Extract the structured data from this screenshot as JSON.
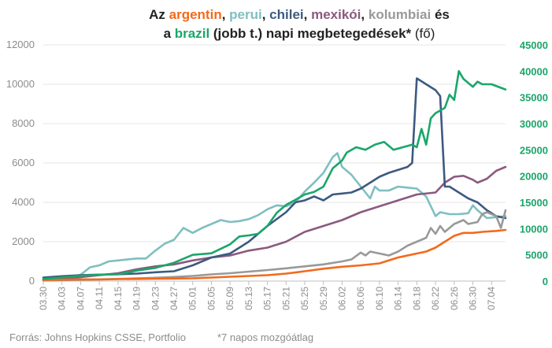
{
  "chart_data": {
    "type": "line",
    "title": {
      "line1": [
        {
          "text": "Az ",
          "color": "#222222",
          "weight": "bold"
        },
        {
          "text": "argentin",
          "color": "#f26a1b",
          "weight": "bold"
        },
        {
          "text": ", ",
          "color": "#222222",
          "weight": "bold"
        },
        {
          "text": "perui",
          "color": "#7fbfc0",
          "weight": "bold"
        },
        {
          "text": ", ",
          "color": "#222222",
          "weight": "bold"
        },
        {
          "text": "chilei",
          "color": "#3d5a80",
          "weight": "bold"
        },
        {
          "text": ", ",
          "color": "#222222",
          "weight": "bold"
        },
        {
          "text": "mexikói",
          "color": "#8a5a7e",
          "weight": "bold"
        },
        {
          "text": ", ",
          "color": "#222222",
          "weight": "bold"
        },
        {
          "text": "kolumbiai",
          "color": "#999999",
          "weight": "bold"
        },
        {
          "text": " és",
          "color": "#222222",
          "weight": "bold"
        }
      ],
      "line2": [
        {
          "text": "a ",
          "color": "#222222",
          "weight": "bold"
        },
        {
          "text": "brazil",
          "color": "#1aa66a",
          "weight": "bold"
        },
        {
          "text": " (jobb t.) napi megbetegedések*",
          "color": "#222222",
          "weight": "bold"
        },
        {
          "text": " (fő)",
          "color": "#222222",
          "weight": "normal"
        }
      ]
    },
    "x_tick_labels": [
      "03.30",
      "04.03",
      "04.07",
      "04.11",
      "04.15",
      "04.19",
      "04.23",
      "04.27",
      "05.01",
      "05.05",
      "05.09",
      "05.13",
      "05.17",
      "05.21",
      "05.25",
      "05.29",
      "06.02",
      "06.06",
      "06.10",
      "06.14",
      "06.18",
      "06.22",
      "06.26",
      "06.30",
      "07.04"
    ],
    "x_range": [
      "03.30",
      "07.07"
    ],
    "y_left": {
      "min": 0,
      "max": 12000,
      "ticks": [
        0,
        2000,
        4000,
        6000,
        8000,
        10000,
        12000
      ]
    },
    "y_right": {
      "min": 0,
      "max": 45000,
      "ticks": [
        0,
        5000,
        10000,
        15000,
        20000,
        25000,
        30000,
        35000,
        40000,
        45000
      ],
      "color": "#1aa66a"
    },
    "grid": {
      "horizontal": true,
      "color": "#e6e6e6"
    },
    "legend": "none (series named in title)",
    "series": [
      {
        "name": "perui",
        "axis": "left",
        "color": "#7fbfc0",
        "points": [
          [
            "03.30",
            50
          ],
          [
            "04.03",
            150
          ],
          [
            "04.07",
            320
          ],
          [
            "04.09",
            700
          ],
          [
            "04.11",
            800
          ],
          [
            "04.13",
            1000
          ],
          [
            "04.15",
            1050
          ],
          [
            "04.19",
            1150
          ],
          [
            "04.21",
            1150
          ],
          [
            "04.23",
            1550
          ],
          [
            "04.25",
            1900
          ],
          [
            "04.27",
            2100
          ],
          [
            "04.29",
            2700
          ],
          [
            "05.01",
            2450
          ],
          [
            "05.03",
            2700
          ],
          [
            "05.05",
            2900
          ],
          [
            "05.07",
            3100
          ],
          [
            "05.09",
            3000
          ],
          [
            "05.11",
            3050
          ],
          [
            "05.13",
            3150
          ],
          [
            "05.15",
            3350
          ],
          [
            "05.17",
            3650
          ],
          [
            "05.19",
            3850
          ],
          [
            "05.21",
            3800
          ],
          [
            "05.23",
            4000
          ],
          [
            "05.25",
            4550
          ],
          [
            "05.27",
            5000
          ],
          [
            "05.29",
            5500
          ],
          [
            "05.31",
            6300
          ],
          [
            "06.01",
            6500
          ],
          [
            "06.02",
            5800
          ],
          [
            "06.04",
            5400
          ],
          [
            "06.06",
            4800
          ],
          [
            "06.08",
            4200
          ],
          [
            "06.09",
            4800
          ],
          [
            "06.10",
            4600
          ],
          [
            "06.12",
            4600
          ],
          [
            "06.14",
            4800
          ],
          [
            "06.16",
            4750
          ],
          [
            "06.18",
            4700
          ],
          [
            "06.20",
            4300
          ],
          [
            "06.22",
            3300
          ],
          [
            "06.23",
            3500
          ],
          [
            "06.25",
            3400
          ],
          [
            "06.27",
            3400
          ],
          [
            "06.29",
            3450
          ],
          [
            "06.30",
            3850
          ],
          [
            "07.01",
            3600
          ],
          [
            "07.03",
            3200
          ],
          [
            "07.05",
            3250
          ],
          [
            "07.07",
            3300
          ]
        ]
      },
      {
        "name": "mexikói",
        "axis": "left",
        "color": "#8a5a7e",
        "points": [
          [
            "03.30",
            80
          ],
          [
            "04.03",
            120
          ],
          [
            "04.07",
            200
          ],
          [
            "04.11",
            300
          ],
          [
            "04.15",
            400
          ],
          [
            "04.19",
            600
          ],
          [
            "04.23",
            750
          ],
          [
            "04.27",
            850
          ],
          [
            "05.01",
            1050
          ],
          [
            "05.05",
            1200
          ],
          [
            "05.09",
            1300
          ],
          [
            "05.13",
            1550
          ],
          [
            "05.17",
            1700
          ],
          [
            "05.21",
            2000
          ],
          [
            "05.25",
            2500
          ],
          [
            "05.29",
            2800
          ],
          [
            "06.02",
            3100
          ],
          [
            "06.06",
            3500
          ],
          [
            "06.10",
            3800
          ],
          [
            "06.14",
            4100
          ],
          [
            "06.18",
            4400
          ],
          [
            "06.22",
            4500
          ],
          [
            "06.24",
            5000
          ],
          [
            "06.26",
            5300
          ],
          [
            "06.28",
            5350
          ],
          [
            "06.30",
            5150
          ],
          [
            "07.01",
            5000
          ],
          [
            "07.03",
            5200
          ],
          [
            "07.05",
            5600
          ],
          [
            "07.07",
            5800
          ]
        ]
      },
      {
        "name": "chilei",
        "axis": "left",
        "color": "#3d5a80",
        "points": [
          [
            "03.30",
            180
          ],
          [
            "04.03",
            250
          ],
          [
            "04.07",
            300
          ],
          [
            "04.11",
            330
          ],
          [
            "04.15",
            350
          ],
          [
            "04.19",
            380
          ],
          [
            "04.23",
            450
          ],
          [
            "04.27",
            500
          ],
          [
            "05.01",
            800
          ],
          [
            "05.03",
            1000
          ],
          [
            "05.05",
            1200
          ],
          [
            "05.09",
            1400
          ],
          [
            "05.13",
            2000
          ],
          [
            "05.17",
            2800
          ],
          [
            "05.21",
            3500
          ],
          [
            "05.23",
            4000
          ],
          [
            "05.25",
            4100
          ],
          [
            "05.27",
            4300
          ],
          [
            "05.29",
            4100
          ],
          [
            "05.31",
            4400
          ],
          [
            "06.02",
            4450
          ],
          [
            "06.04",
            4500
          ],
          [
            "06.06",
            4700
          ],
          [
            "06.08",
            5000
          ],
          [
            "06.10",
            5300
          ],
          [
            "06.12",
            5500
          ],
          [
            "06.14",
            5650
          ],
          [
            "06.16",
            5800
          ],
          [
            "06.17",
            6000
          ],
          [
            "06.18",
            10300
          ],
          [
            "06.20",
            10000
          ],
          [
            "06.22",
            9700
          ],
          [
            "06.23",
            9400
          ],
          [
            "06.24",
            4800
          ],
          [
            "06.25",
            4800
          ],
          [
            "06.27",
            4500
          ],
          [
            "06.29",
            4200
          ],
          [
            "07.01",
            4000
          ],
          [
            "07.03",
            3600
          ],
          [
            "07.05",
            3300
          ],
          [
            "07.07",
            3200
          ]
        ]
      },
      {
        "name": "kolumbiai",
        "axis": "left",
        "color": "#999999",
        "points": [
          [
            "03.30",
            30
          ],
          [
            "04.03",
            50
          ],
          [
            "04.07",
            70
          ],
          [
            "04.11",
            90
          ],
          [
            "04.15",
            110
          ],
          [
            "04.19",
            140
          ],
          [
            "04.23",
            170
          ],
          [
            "04.27",
            210
          ],
          [
            "05.01",
            260
          ],
          [
            "05.05",
            340
          ],
          [
            "05.09",
            400
          ],
          [
            "05.13",
            480
          ],
          [
            "05.17",
            560
          ],
          [
            "05.21",
            650
          ],
          [
            "05.25",
            750
          ],
          [
            "05.29",
            850
          ],
          [
            "06.02",
            1000
          ],
          [
            "06.04",
            1100
          ],
          [
            "06.06",
            1450
          ],
          [
            "06.07",
            1300
          ],
          [
            "06.08",
            1500
          ],
          [
            "06.10",
            1400
          ],
          [
            "06.12",
            1300
          ],
          [
            "06.14",
            1500
          ],
          [
            "06.16",
            1800
          ],
          [
            "06.18",
            2000
          ],
          [
            "06.20",
            2200
          ],
          [
            "06.21",
            2700
          ],
          [
            "06.22",
            2400
          ],
          [
            "06.23",
            2800
          ],
          [
            "06.24",
            2500
          ],
          [
            "06.26",
            2900
          ],
          [
            "06.28",
            3100
          ],
          [
            "06.29",
            2900
          ],
          [
            "07.01",
            3000
          ],
          [
            "07.02",
            3400
          ],
          [
            "07.03",
            3500
          ],
          [
            "07.05",
            3300
          ],
          [
            "07.06",
            2700
          ],
          [
            "07.07",
            3600
          ]
        ]
      },
      {
        "name": "argentin",
        "axis": "left",
        "color": "#f26a1b",
        "points": [
          [
            "03.30",
            60
          ],
          [
            "04.03",
            70
          ],
          [
            "04.07",
            90
          ],
          [
            "04.11",
            80
          ],
          [
            "04.15",
            100
          ],
          [
            "04.19",
            110
          ],
          [
            "04.23",
            120
          ],
          [
            "04.27",
            130
          ],
          [
            "05.01",
            140
          ],
          [
            "05.05",
            180
          ],
          [
            "05.09",
            220
          ],
          [
            "05.13",
            260
          ],
          [
            "05.17",
            300
          ],
          [
            "05.21",
            380
          ],
          [
            "05.25",
            500
          ],
          [
            "05.29",
            630
          ],
          [
            "06.02",
            730
          ],
          [
            "06.06",
            800
          ],
          [
            "06.10",
            900
          ],
          [
            "06.14",
            1200
          ],
          [
            "06.18",
            1400
          ],
          [
            "06.20",
            1500
          ],
          [
            "06.22",
            1700
          ],
          [
            "06.24",
            2000
          ],
          [
            "06.26",
            2300
          ],
          [
            "06.28",
            2450
          ],
          [
            "06.30",
            2450
          ],
          [
            "07.02",
            2500
          ],
          [
            "07.05",
            2550
          ],
          [
            "07.07",
            2600
          ]
        ]
      },
      {
        "name": "brazil",
        "axis": "right",
        "color": "#1aa66a",
        "points": [
          [
            "03.30",
            400
          ],
          [
            "04.03",
            700
          ],
          [
            "04.07",
            1000
          ],
          [
            "04.11",
            1200
          ],
          [
            "04.15",
            1300
          ],
          [
            "04.19",
            2000
          ],
          [
            "04.23",
            2500
          ],
          [
            "04.27",
            3500
          ],
          [
            "05.01",
            5000
          ],
          [
            "05.05",
            5300
          ],
          [
            "05.09",
            7000
          ],
          [
            "05.11",
            8500
          ],
          [
            "05.13",
            8700
          ],
          [
            "05.15",
            9000
          ],
          [
            "05.17",
            10500
          ],
          [
            "05.19",
            13000
          ],
          [
            "05.21",
            14500
          ],
          [
            "05.23",
            15500
          ],
          [
            "05.25",
            16500
          ],
          [
            "05.27",
            17000
          ],
          [
            "05.29",
            18000
          ],
          [
            "05.31",
            21500
          ],
          [
            "06.02",
            23000
          ],
          [
            "06.03",
            24500
          ],
          [
            "06.05",
            25500
          ],
          [
            "06.07",
            25000
          ],
          [
            "06.09",
            26000
          ],
          [
            "06.11",
            26500
          ],
          [
            "06.13",
            25000
          ],
          [
            "06.15",
            25500
          ],
          [
            "06.17",
            26000
          ],
          [
            "06.18",
            25500
          ],
          [
            "06.19",
            29000
          ],
          [
            "06.20",
            26000
          ],
          [
            "06.21",
            31000
          ],
          [
            "06.22",
            32000
          ],
          [
            "06.24",
            33000
          ],
          [
            "06.25",
            35500
          ],
          [
            "06.26",
            34500
          ],
          [
            "06.27",
            40000
          ],
          [
            "06.28",
            38500
          ],
          [
            "06.30",
            37000
          ],
          [
            "07.01",
            38000
          ],
          [
            "07.02",
            37500
          ],
          [
            "07.04",
            37500
          ],
          [
            "07.07",
            36500
          ]
        ]
      }
    ],
    "footer": {
      "source": "Forrás: Johns Hopkins CSSE, Portfolio",
      "note": "*7 napos mozgóátlag"
    }
  }
}
